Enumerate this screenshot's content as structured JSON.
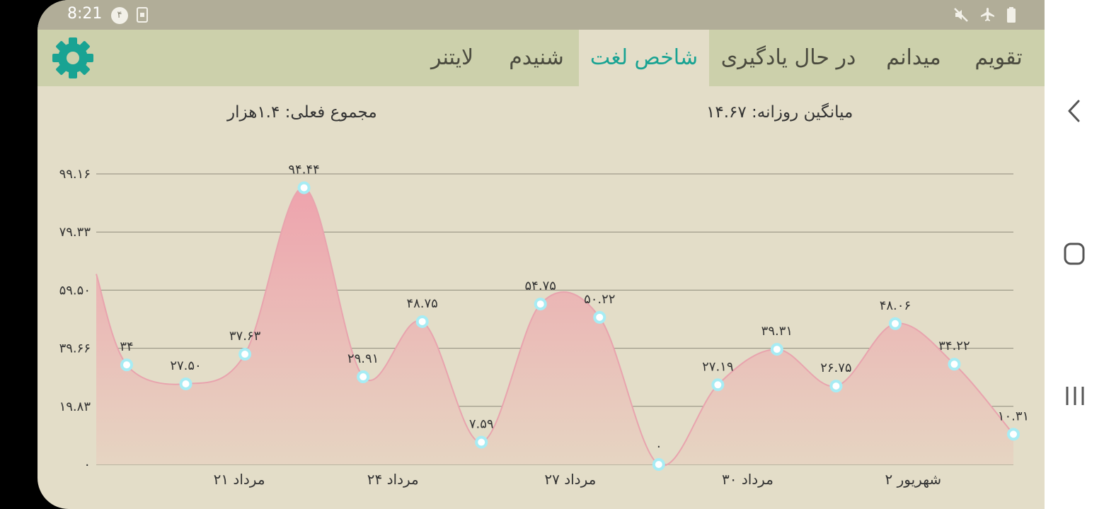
{
  "status_bar": {
    "time": "8:21",
    "notification_count": "۴",
    "icons": [
      "sim-icon",
      "mute-icon",
      "airplane-icon",
      "battery-icon"
    ]
  },
  "tabs": [
    {
      "label": "تقویم",
      "active": false
    },
    {
      "label": "میدانم",
      "active": false
    },
    {
      "label": "در حال یادگیری",
      "active": false
    },
    {
      "label": "شاخص لغت",
      "active": true
    },
    {
      "label": "شنیدم",
      "active": false
    },
    {
      "label": "لایتنر",
      "active": false
    }
  ],
  "settings_icon": "gear-icon",
  "summary": {
    "total": "مجموع فعلی: ۱.۴هزار",
    "daily_average": "میانگین روزانه: ۱۴.۶۷"
  },
  "chart_data": {
    "type": "area",
    "y_ticks": [
      "۰",
      "۱۹.۸۳",
      "۳۹.۶۶",
      "۵۹.۵۰",
      "۷۹.۳۳",
      "۹۹.۱۶"
    ],
    "ylim": [
      0,
      99.16
    ],
    "x_ticks": [
      "۲۱ مرداد",
      "۲۴ مرداد",
      "۲۷ مرداد",
      "۳۰ مرداد",
      "۲ شهریور"
    ],
    "leading_value": 65,
    "values": [
      34,
      27.5,
      37.63,
      94.44,
      29.91,
      48.75,
      7.59,
      54.75,
      50.22,
      0,
      27.19,
      39.31,
      26.75,
      48.06,
      34.22,
      10.31
    ],
    "value_labels": [
      "۳۴",
      "۲۷.۵۰",
      "۳۷.۶۳",
      "۹۴.۴۴",
      "۲۹.۹۱",
      "۴۸.۷۵",
      "۷.۵۹",
      "۵۴.۷۵",
      "۵۰.۲۲",
      "۰",
      "۲۷.۱۹",
      "۳۹.۳۱",
      "۲۶.۷۵",
      "۴۸.۰۶",
      "۳۴.۲۲",
      "۱۰.۳۱"
    ],
    "grid": true,
    "colors": {
      "fill_top": "#eea3ad",
      "fill_bottom": "#e6d5c2",
      "line": "#e8a4ae",
      "marker": "#a7ecf4"
    }
  },
  "nav_bar": {
    "back": "back-icon",
    "home": "home-icon",
    "recents": "recents-icon"
  }
}
